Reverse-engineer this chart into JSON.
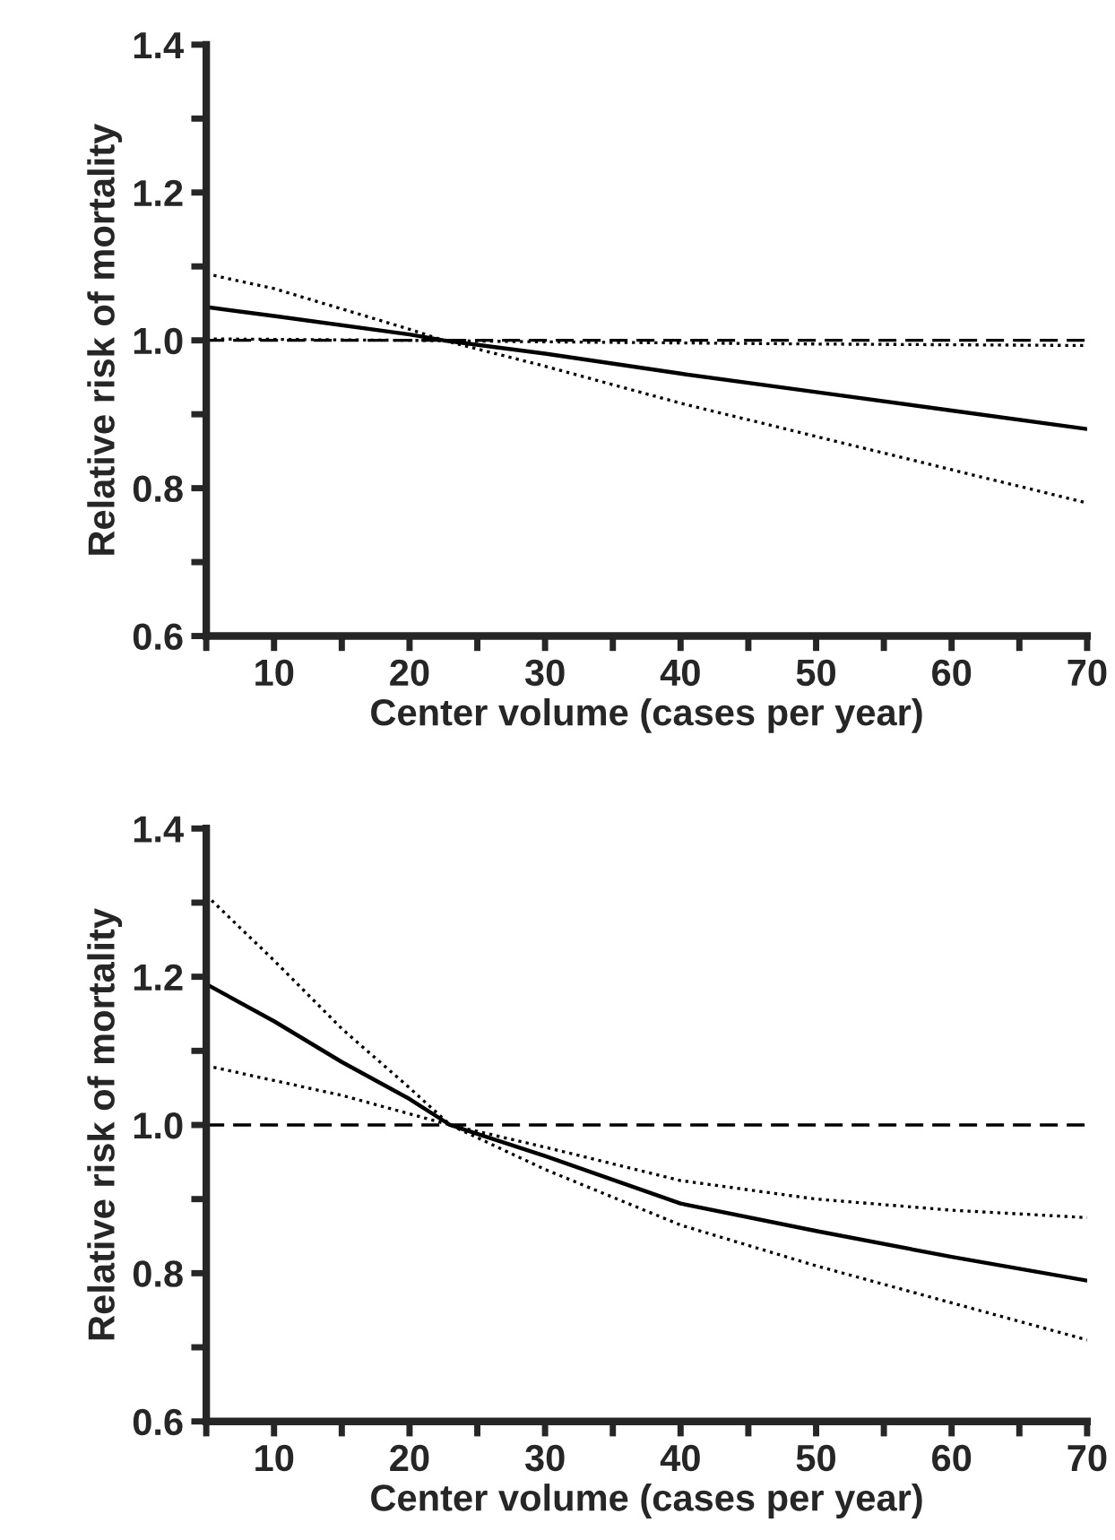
{
  "chart_data": [
    {
      "type": "line",
      "xlabel": "Center volume (cases per year)",
      "ylabel": "Relative risk of mortality",
      "xlim": [
        5,
        70
      ],
      "ylim": [
        0.6,
        1.4
      ],
      "xticks": [
        {
          "value": 5,
          "label": null
        },
        10,
        {
          "value": 15,
          "label": null
        },
        20,
        {
          "value": 25,
          "label": null
        },
        30,
        {
          "value": 35,
          "label": null
        },
        40,
        {
          "value": 45,
          "label": null
        },
        50,
        {
          "value": 55,
          "label": null
        },
        60,
        {
          "value": 65,
          "label": null
        },
        70
      ],
      "yticks": [
        0.6,
        {
          "value": 0.7,
          "label": null
        },
        0.8,
        {
          "value": 0.9,
          "label": null
        },
        {
          "value": 1,
          "label": "1.0"
        },
        {
          "value": 1.1,
          "label": null
        },
        1.2,
        {
          "value": 1.3,
          "label": null
        },
        1.4
      ],
      "grid": false,
      "legend": false,
      "ref_lines": [
        {
          "axis": "y",
          "value": 1.0,
          "color": "#000000",
          "line_style": "dashed"
        }
      ],
      "series": [
        {
          "color": "#000000",
          "line_style": "solid",
          "x": [
            5,
            10,
            20,
            22.5,
            30,
            40,
            50,
            60,
            70
          ],
          "values": [
            1.045,
            1.033,
            1.008,
            1.0,
            0.982,
            0.955,
            0.93,
            0.905,
            0.88
          ]
        },
        {
          "color": "#000000",
          "line_style": "dotted",
          "x": [
            5,
            10,
            20,
            22.5,
            30,
            40,
            50,
            60,
            70
          ],
          "values": [
            1.09,
            1.07,
            1.015,
            1.0,
            0.965,
            0.915,
            0.87,
            0.825,
            0.78
          ]
        },
        {
          "color": "#000000",
          "line_style": "dotted",
          "x": [
            5,
            20,
            30,
            50,
            70
          ],
          "values": [
            1.002,
            1.0,
            0.998,
            0.995,
            0.993
          ]
        }
      ]
    },
    {
      "type": "line",
      "xlabel": "Center volume (cases per year)",
      "ylabel": "Relative risk of mortality",
      "xlim": [
        5,
        70
      ],
      "ylim": [
        0.6,
        1.4
      ],
      "xticks": [
        {
          "value": 5,
          "label": null
        },
        10,
        {
          "value": 15,
          "label": null
        },
        20,
        {
          "value": 25,
          "label": null
        },
        30,
        {
          "value": 35,
          "label": null
        },
        40,
        {
          "value": 45,
          "label": null
        },
        50,
        {
          "value": 55,
          "label": null
        },
        60,
        {
          "value": 65,
          "label": null
        },
        70
      ],
      "yticks": [
        0.6,
        {
          "value": 0.7,
          "label": null
        },
        0.8,
        {
          "value": 0.9,
          "label": null
        },
        {
          "value": 1,
          "label": "1.0"
        },
        {
          "value": 1.1,
          "label": null
        },
        1.2,
        {
          "value": 1.3,
          "label": null
        },
        1.4
      ],
      "grid": false,
      "legend": false,
      "ref_lines": [
        {
          "axis": "y",
          "value": 1.0,
          "color": "#000000",
          "line_style": "dashed"
        }
      ],
      "series": [
        {
          "color": "#000000",
          "line_style": "solid",
          "x": [
            5,
            10,
            15,
            20,
            23,
            30,
            40,
            50,
            60,
            70
          ],
          "values": [
            1.19,
            1.14,
            1.085,
            1.035,
            1.0,
            0.958,
            0.894,
            0.857,
            0.822,
            0.79
          ]
        },
        {
          "color": "#000000",
          "line_style": "dotted",
          "x": [
            5,
            10,
            15,
            20,
            23,
            30,
            40,
            50,
            60,
            70
          ],
          "values": [
            1.31,
            1.222,
            1.13,
            1.05,
            1.0,
            0.94,
            0.865,
            0.81,
            0.76,
            0.71
          ]
        },
        {
          "color": "#000000",
          "line_style": "dotted",
          "x": [
            5,
            10,
            15,
            20,
            23,
            30,
            40,
            50,
            60,
            70
          ],
          "values": [
            1.08,
            1.06,
            1.04,
            1.015,
            1.0,
            0.97,
            0.925,
            0.9,
            0.885,
            0.875
          ]
        }
      ]
    }
  ]
}
